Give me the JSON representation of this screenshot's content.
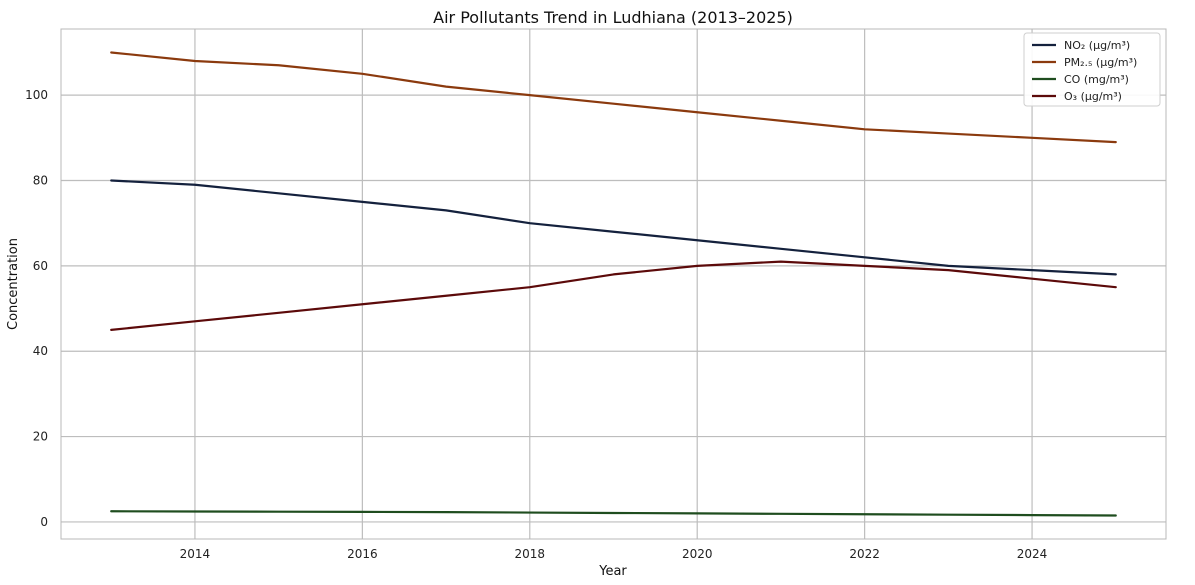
{
  "chart_data": {
    "type": "line",
    "title": "Air Pollutants Trend in Ludhiana (2013–2025)",
    "xlabel": "Year",
    "ylabel": "Concentration",
    "x": [
      2013,
      2014,
      2015,
      2016,
      2017,
      2018,
      2019,
      2020,
      2021,
      2022,
      2023,
      2024,
      2025
    ],
    "xlim": [
      2012.4,
      2025.6
    ],
    "ylim": [
      -4,
      115.5
    ],
    "xticks": [
      "2014",
      "2016",
      "2018",
      "2020",
      "2022",
      "2024"
    ],
    "yticks": [
      "0",
      "20",
      "40",
      "60",
      "80",
      "100"
    ],
    "grid": true,
    "legend_position": "top-right",
    "series": [
      {
        "name": "NO₂ (µg/m³)",
        "color": "#14213d",
        "values": [
          80,
          79,
          77,
          75,
          73,
          70,
          68,
          66,
          64,
          62,
          60,
          59,
          58
        ]
      },
      {
        "name": "PM₂.₅ (µg/m³)",
        "color": "#8b3a0e",
        "values": [
          110,
          108,
          107,
          105,
          102,
          100,
          98,
          96,
          94,
          92,
          91,
          90,
          89
        ]
      },
      {
        "name": "CO (mg/m³)",
        "color": "#1f4d1f",
        "values": [
          2.5,
          2.45,
          2.4,
          2.35,
          2.3,
          2.2,
          2.1,
          2.0,
          1.9,
          1.8,
          1.7,
          1.6,
          1.5
        ]
      },
      {
        "name": "O₃ (µg/m³)",
        "color": "#5c0a0a",
        "values": [
          45,
          47,
          49,
          51,
          53,
          55,
          58,
          60,
          61,
          60,
          59,
          57,
          55
        ]
      }
    ]
  }
}
